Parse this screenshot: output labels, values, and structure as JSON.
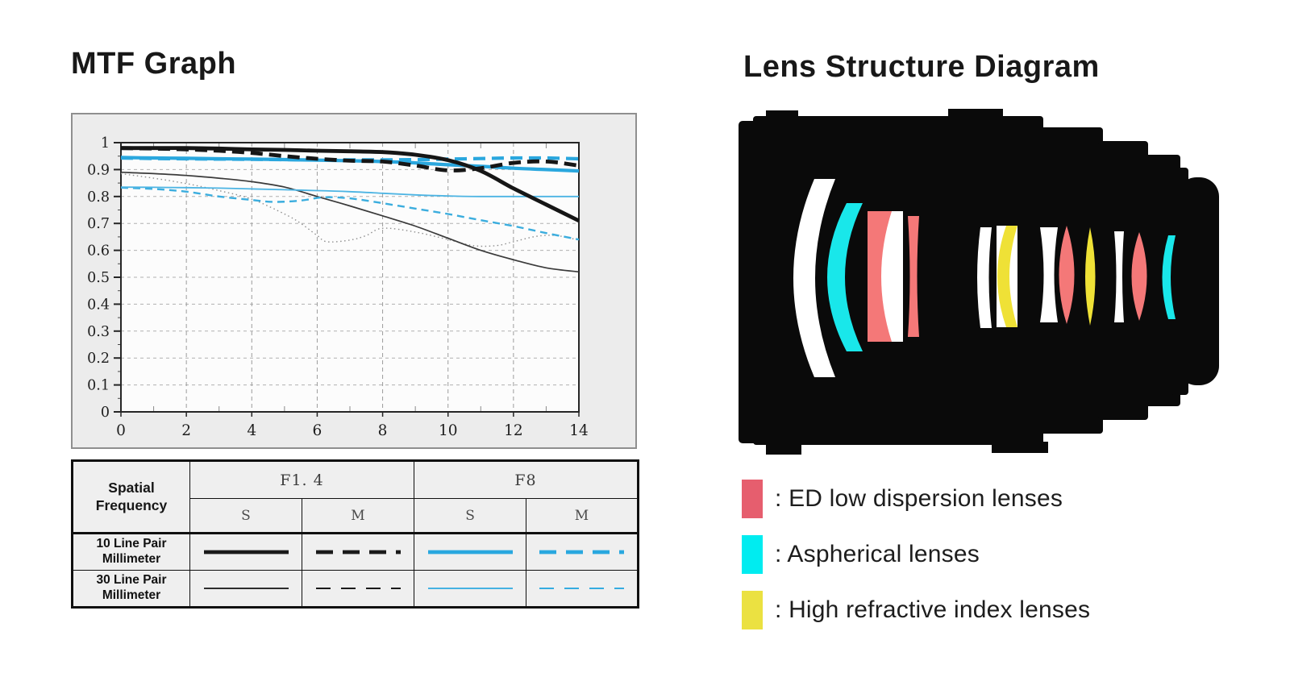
{
  "left_title": "MTF Graph",
  "right_title": "Lens Structure Diagram",
  "chart_data": {
    "type": "line",
    "title": "MTF Graph",
    "xlabel": "",
    "ylabel": "",
    "xlim": [
      0,
      14
    ],
    "ylim": [
      0,
      1
    ],
    "x_ticks": [
      0,
      2,
      4,
      6,
      8,
      10,
      12,
      14
    ],
    "y_ticks": [
      0,
      0.1,
      0.2,
      0.3,
      0.4,
      0.5,
      0.6,
      0.7,
      0.8,
      0.9,
      1
    ],
    "grid": true,
    "legend_position": "table-below",
    "series": [
      {
        "name": "F1.4 30 lp/mm M",
        "color": "#8f8f8f",
        "style": "dotted",
        "width": 1.4,
        "x": [
          0,
          1,
          2,
          3,
          4,
          5,
          5.5,
          6,
          6.3,
          7,
          7.5,
          8,
          9,
          10,
          10.8,
          11.5,
          12,
          12.7,
          13.3,
          14
        ],
        "y": [
          0.885,
          0.868,
          0.848,
          0.822,
          0.79,
          0.735,
          0.7,
          0.655,
          0.632,
          0.638,
          0.655,
          0.682,
          0.668,
          0.64,
          0.617,
          0.618,
          0.632,
          0.652,
          0.655,
          0.638
        ]
      },
      {
        "name": "F1.4 30 lp/mm S",
        "color": "#3a3a3a",
        "style": "solid",
        "width": 1.7,
        "x": [
          0,
          1,
          2,
          3,
          4,
          5,
          6,
          7,
          8,
          9,
          10,
          11,
          12,
          13,
          14
        ],
        "y": [
          0.89,
          0.885,
          0.878,
          0.868,
          0.855,
          0.835,
          0.8,
          0.765,
          0.728,
          0.69,
          0.645,
          0.6,
          0.565,
          0.535,
          0.52
        ]
      },
      {
        "name": "F8 30 lp/mm M",
        "color": "#3badde",
        "style": "dashed",
        "width": 2.4,
        "x": [
          0,
          1,
          2,
          3,
          4,
          4.7,
          5.5,
          6.2,
          7,
          8,
          9,
          10,
          11,
          12,
          13,
          14
        ],
        "y": [
          0.833,
          0.828,
          0.818,
          0.8,
          0.787,
          0.78,
          0.785,
          0.797,
          0.793,
          0.775,
          0.755,
          0.735,
          0.712,
          0.69,
          0.664,
          0.64
        ]
      },
      {
        "name": "F8 30 lp/mm S",
        "color": "#4cb4e3",
        "style": "solid",
        "width": 1.8,
        "x": [
          0,
          1,
          2,
          3,
          4,
          5,
          6,
          7,
          8,
          9,
          10,
          11,
          12,
          13,
          14
        ],
        "y": [
          0.835,
          0.834,
          0.833,
          0.831,
          0.828,
          0.825,
          0.822,
          0.818,
          0.812,
          0.806,
          0.802,
          0.8,
          0.8,
          0.8,
          0.8
        ]
      },
      {
        "name": "F8 10 lp/mm S",
        "color": "#2aa7de",
        "style": "solid",
        "width": 4.2,
        "x": [
          0,
          1,
          2,
          3,
          4,
          5,
          6,
          7,
          8,
          9,
          10,
          11,
          12,
          13,
          14
        ],
        "y": [
          0.945,
          0.943,
          0.942,
          0.94,
          0.939,
          0.937,
          0.935,
          0.933,
          0.93,
          0.925,
          0.918,
          0.912,
          0.905,
          0.9,
          0.895
        ]
      },
      {
        "name": "F8 10 lp/mm M",
        "color": "#2aa7de",
        "style": "dashed",
        "width": 4.2,
        "x": [
          0,
          1,
          2,
          3,
          4,
          5,
          6,
          7,
          8,
          9,
          10,
          11,
          12,
          13,
          14
        ],
        "y": [
          0.943,
          0.941,
          0.94,
          0.939,
          0.938,
          0.937,
          0.936,
          0.936,
          0.936,
          0.937,
          0.939,
          0.941,
          0.943,
          0.943,
          0.94
        ]
      },
      {
        "name": "F1.4 10 lp/mm S",
        "color": "#161616",
        "style": "solid",
        "width": 4.8,
        "x": [
          0,
          1,
          2,
          3,
          4,
          5,
          6,
          7,
          8,
          9,
          10,
          11,
          12,
          13,
          14
        ],
        "y": [
          0.98,
          0.98,
          0.98,
          0.978,
          0.975,
          0.973,
          0.97,
          0.968,
          0.965,
          0.955,
          0.935,
          0.895,
          0.83,
          0.77,
          0.71
        ]
      },
      {
        "name": "F1.4 10 lp/mm M",
        "color": "#161616",
        "style": "dashed",
        "width": 4.8,
        "x": [
          0,
          1,
          2,
          3,
          4,
          5,
          6,
          7,
          8,
          9,
          10,
          11,
          12,
          13,
          14
        ],
        "y": [
          0.98,
          0.978,
          0.975,
          0.97,
          0.962,
          0.95,
          0.94,
          0.933,
          0.93,
          0.915,
          0.897,
          0.905,
          0.925,
          0.93,
          0.915
        ]
      }
    ]
  },
  "table": {
    "corner_label": "Spatial Frequency",
    "col_groups": [
      "F1. 4",
      "F8"
    ],
    "sub_cols": [
      "S",
      "M",
      "S",
      "M"
    ],
    "rows": [
      {
        "label": "10 Line Pair Millimeter",
        "samples": [
          {
            "color": "#1a1a1a",
            "style": "solid",
            "weight": "thick"
          },
          {
            "color": "#1a1a1a",
            "style": "dashed",
            "weight": "thick"
          },
          {
            "color": "#29a8df",
            "style": "solid",
            "weight": "thick"
          },
          {
            "color": "#29a8df",
            "style": "dashed",
            "weight": "thick"
          }
        ]
      },
      {
        "label": "30 Line Pair Millimeter",
        "samples": [
          {
            "color": "#2e2e2e",
            "style": "solid",
            "weight": "thin"
          },
          {
            "color": "#1a1a1a",
            "style": "dashed",
            "weight": "thin"
          },
          {
            "color": "#45b2e2",
            "style": "solid",
            "weight": "thin"
          },
          {
            "color": "#35ace0",
            "style": "dashed",
            "weight": "thin"
          }
        ]
      }
    ]
  },
  "legend": [
    {
      "name": "ed",
      "color": "#e65e6e",
      "label": ": ED low dispersion lenses"
    },
    {
      "name": "aspherical",
      "color": "#00ecf0",
      "label": ": Aspherical lenses"
    },
    {
      "name": "high_index",
      "color": "#ebe141",
      "label": ": High refractive index lenses"
    }
  ],
  "lens_colors": {
    "body": "#0a0a0a",
    "element": "#ffffff",
    "ed": "#f47878",
    "aspherical": "#19e7ea",
    "high_index": "#efe136"
  }
}
